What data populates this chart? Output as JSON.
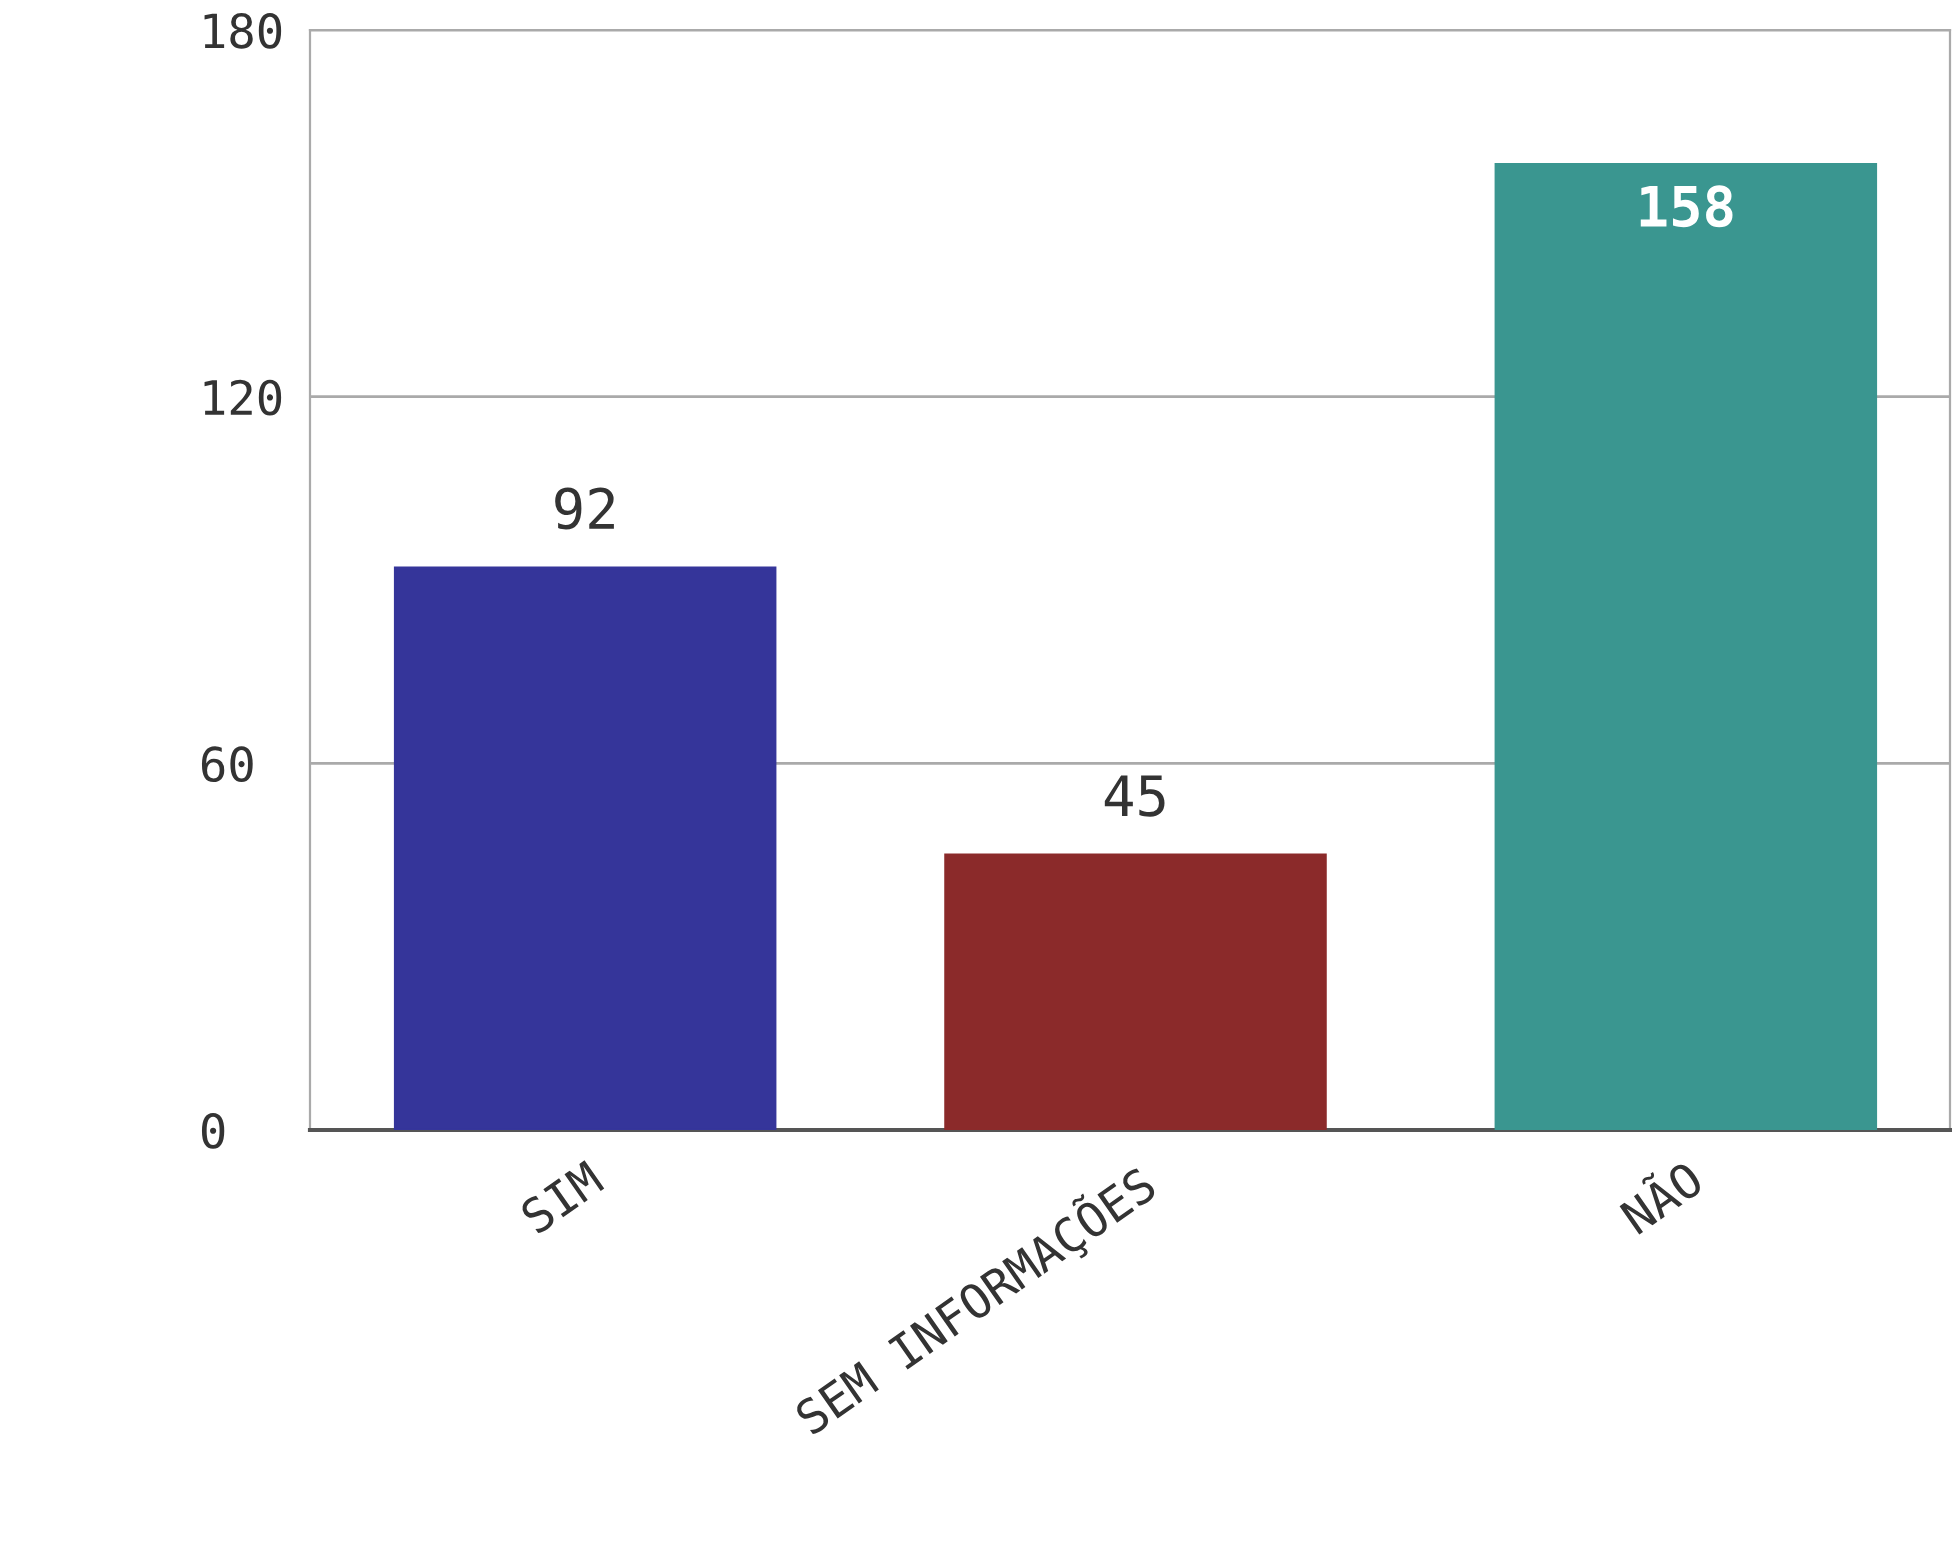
{
  "chart_data": {
    "type": "bar",
    "categories": [
      "SIM",
      "SEM INFORMAÇÕES",
      "NÃO"
    ],
    "values": [
      92,
      45,
      158
    ],
    "colors": [
      "#35359a",
      "#8b2a2a",
      "#3a9690"
    ],
    "ylim": [
      0,
      180
    ],
    "yticks": [
      0,
      60,
      120,
      180
    ],
    "grid": "y",
    "data_labels": true,
    "legend": false
  }
}
